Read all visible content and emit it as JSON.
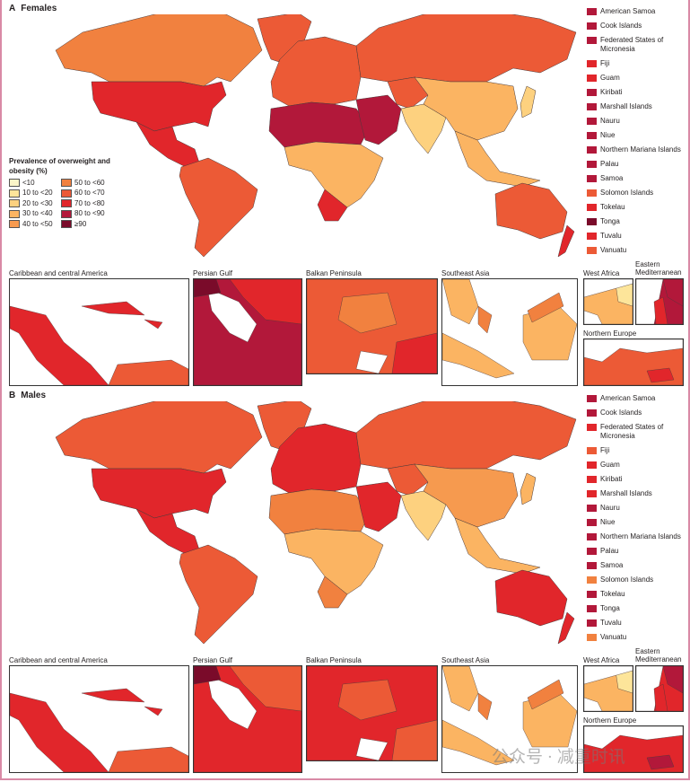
{
  "legend": {
    "title": "Prevalence of overweight and obesity (%)",
    "categories": [
      {
        "label": "<10",
        "color": "#fbf5c8"
      },
      {
        "label": "10 to <20",
        "color": "#fde59a"
      },
      {
        "label": "20 to <30",
        "color": "#fdd17f"
      },
      {
        "label": "30 to <40",
        "color": "#fbb462"
      },
      {
        "label": "40 to <50",
        "color": "#f69a4f"
      },
      {
        "label": "50 to <60",
        "color": "#f1813f"
      },
      {
        "label": "60 to <70",
        "color": "#ec5a36"
      },
      {
        "label": "70 to <80",
        "color": "#e1262b"
      },
      {
        "label": "80 to <90",
        "color": "#b2183a"
      },
      {
        "label": "≥90",
        "color": "#7a0b2a"
      }
    ]
  },
  "inset_titles": [
    "Caribbean and central America",
    "Persian Gulf",
    "Balkan Peninsula",
    "Southeast Asia",
    "West Africa",
    "Eastern Mediterranean",
    "Northern Europe"
  ],
  "panels": [
    {
      "letter": "A",
      "title": "Females",
      "regions": {
        "greenland": 6,
        "canada": 5,
        "usa": 7,
        "mexico": 7,
        "south_america": 6,
        "europe": 6,
        "russia": 6,
        "north_africa": 8,
        "subsaharan_africa": 3,
        "southern_africa": 7,
        "middle_east": 8,
        "central_asia": 6,
        "south_asia": 2,
        "china": 3,
        "japan": 2,
        "southeast_asia": 3,
        "australia": 6,
        "new_zealand": 7
      },
      "islands": [
        {
          "name": "American Samoa",
          "cat": 8
        },
        {
          "name": "Cook Islands",
          "cat": 8
        },
        {
          "name": "Federated States of Micronesia",
          "cat": 8
        },
        {
          "name": "Fiji",
          "cat": 7
        },
        {
          "name": "Guam",
          "cat": 7
        },
        {
          "name": "Kiribati",
          "cat": 8
        },
        {
          "name": "Marshall Islands",
          "cat": 8
        },
        {
          "name": "Nauru",
          "cat": 8
        },
        {
          "name": "Niue",
          "cat": 8
        },
        {
          "name": "Northern Mariana Islands",
          "cat": 8
        },
        {
          "name": "Palau",
          "cat": 8
        },
        {
          "name": "Samoa",
          "cat": 8
        },
        {
          "name": "Solomon Islands",
          "cat": 6
        },
        {
          "name": "Tokelau",
          "cat": 7
        },
        {
          "name": "Tonga",
          "cat": 9
        },
        {
          "name": "Tuvalu",
          "cat": 7
        },
        {
          "name": "Vanuatu",
          "cat": 6
        }
      ]
    },
    {
      "letter": "B",
      "title": "Males",
      "regions": {
        "greenland": 6,
        "canada": 6,
        "usa": 7,
        "mexico": 7,
        "south_america": 6,
        "europe": 7,
        "russia": 6,
        "north_africa": 5,
        "subsaharan_africa": 3,
        "southern_africa": 5,
        "middle_east": 7,
        "central_asia": 6,
        "south_asia": 2,
        "china": 4,
        "japan": 3,
        "southeast_asia": 3,
        "australia": 7,
        "new_zealand": 7
      },
      "islands": [
        {
          "name": "American Samoa",
          "cat": 8
        },
        {
          "name": "Cook Islands",
          "cat": 8
        },
        {
          "name": "Federated States of Micronesia",
          "cat": 7
        },
        {
          "name": "Fiji",
          "cat": 6
        },
        {
          "name": "Guam",
          "cat": 7
        },
        {
          "name": "Kiribati",
          "cat": 7
        },
        {
          "name": "Marshall Islands",
          "cat": 7
        },
        {
          "name": "Nauru",
          "cat": 8
        },
        {
          "name": "Niue",
          "cat": 8
        },
        {
          "name": "Northern Mariana Islands",
          "cat": 8
        },
        {
          "name": "Palau",
          "cat": 8
        },
        {
          "name": "Samoa",
          "cat": 8
        },
        {
          "name": "Solomon Islands",
          "cat": 5
        },
        {
          "name": "Tokelau",
          "cat": 8
        },
        {
          "name": "Tonga",
          "cat": 8
        },
        {
          "name": "Tuvalu",
          "cat": 8
        },
        {
          "name": "Vanuatu",
          "cat": 5
        }
      ]
    }
  ],
  "watermark": "公众号 · 减重时讯"
}
